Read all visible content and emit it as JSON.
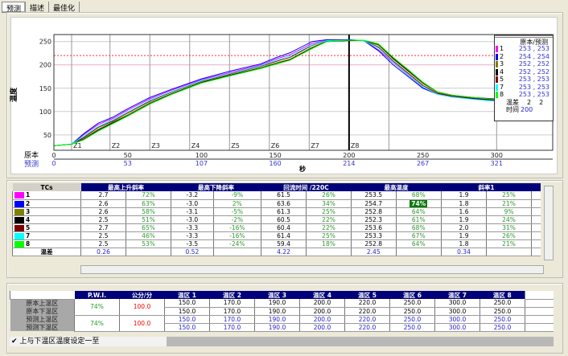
{
  "tabs": [
    {
      "label": "预测",
      "active": true
    },
    {
      "label": "描述"
    },
    {
      "label": "最佳化"
    }
  ],
  "chart_data": {
    "type": "line",
    "ylabel": "温度",
    "xlabel": "秒",
    "xlim": [
      0,
      338
    ],
    "ylim": [
      17,
      265
    ],
    "yticks": [
      50,
      100,
      150,
      200,
      250
    ],
    "xticks_original": {
      "label": "原本",
      "values": [
        0,
        50,
        100,
        150,
        200,
        250,
        300
      ]
    },
    "xticks_predicted": {
      "label": "预测",
      "values": [
        "0",
        "53",
        "107",
        "160",
        "214",
        "267",
        "321"
      ]
    },
    "reference_line": {
      "y": 220,
      "color": "#ff3030",
      "style": "dashed"
    },
    "cursor_x": 200,
    "zones": [
      {
        "label": "Z1",
        "x": 12
      },
      {
        "label": "Z2",
        "x": 38
      },
      {
        "label": "Z3",
        "x": 65
      },
      {
        "label": "Z4",
        "x": 92
      },
      {
        "label": "Z5",
        "x": 119
      },
      {
        "label": "Z6",
        "x": 146
      },
      {
        "label": "Z7",
        "x": 173
      },
      {
        "label": "Z8",
        "x": 200
      }
    ],
    "x": [
      0,
      12,
      20,
      30,
      40,
      50,
      65,
      80,
      100,
      120,
      140,
      150,
      160,
      175,
      185,
      200,
      210,
      220,
      230,
      240,
      250,
      260,
      270,
      285,
      300,
      320,
      335
    ],
    "series": [
      {
        "name": "1",
        "color": "#ff00ff",
        "values": [
          27,
          30,
          50,
          72,
          85,
          103,
          127,
          146,
          168,
          184,
          200,
          212,
          222,
          246,
          253,
          253,
          252,
          232,
          205,
          178,
          152,
          138,
          132,
          127,
          124,
          121,
          119
        ]
      },
      {
        "name": "2",
        "color": "#0000ff",
        "values": [
          27,
          30,
          52,
          75,
          88,
          106,
          130,
          148,
          170,
          187,
          202,
          215,
          226,
          250,
          254,
          254,
          252,
          230,
          200,
          175,
          150,
          137,
          131,
          127,
          124,
          121,
          119
        ]
      },
      {
        "name": "3",
        "color": "#808000",
        "values": [
          27,
          30,
          42,
          62,
          78,
          93,
          119,
          139,
          163,
          179,
          194,
          204,
          212,
          238,
          251,
          252,
          252,
          242,
          212,
          186,
          160,
          141,
          134,
          129,
          126,
          123,
          121
        ]
      },
      {
        "name": "4",
        "color": "#000000",
        "values": [
          27,
          30,
          40,
          60,
          76,
          91,
          117,
          138,
          162,
          178,
          193,
          202,
          211,
          236,
          250,
          252,
          252,
          244,
          214,
          188,
          162,
          142,
          135,
          130,
          127,
          124,
          122
        ]
      },
      {
        "name": "5",
        "color": "#800000",
        "values": [
          27,
          30,
          44,
          66,
          80,
          97,
          122,
          142,
          165,
          181,
          197,
          207,
          216,
          242,
          252,
          253,
          252,
          238,
          208,
          182,
          156,
          139,
          133,
          128,
          125,
          122,
          120
        ]
      },
      {
        "name": "7",
        "color": "#00ffff",
        "values": [
          27,
          30,
          47,
          68,
          82,
          99,
          124,
          143,
          166,
          182,
          198,
          209,
          219,
          243,
          252,
          253,
          252,
          236,
          206,
          179,
          153,
          137,
          131,
          126,
          122,
          119,
          117
        ]
      },
      {
        "name": "8",
        "color": "#00ff00",
        "values": [
          27,
          30,
          39,
          58,
          74,
          90,
          116,
          137,
          161,
          177,
          192,
          201,
          210,
          235,
          250,
          253,
          253,
          245,
          216,
          190,
          163,
          142,
          135,
          130,
          126,
          123,
          121
        ]
      }
    ]
  },
  "legend": {
    "header": "原本/预测",
    "rows": [
      {
        "tc": "1",
        "color": "#ff00ff",
        "value": "253 , 253"
      },
      {
        "tc": "2",
        "color": "#0000ff",
        "value": "254 , 254"
      },
      {
        "tc": "3",
        "color": "#808000",
        "value": "252 , 252"
      },
      {
        "tc": "4",
        "color": "#000000",
        "value": "252 , 252"
      },
      {
        "tc": "5",
        "color": "#800000",
        "value": "253 , 253"
      },
      {
        "tc": "7",
        "color": "#00ffff",
        "value": "253 , 253"
      },
      {
        "tc": "8",
        "color": "#00ff00",
        "value": "253 , 253"
      }
    ],
    "delta_label": "温差",
    "delta_a": "2",
    "delta_b": "2",
    "time_label": "时间",
    "time_value": "200"
  },
  "stats_table": {
    "headers": [
      "TCs",
      "最高上升斜率",
      "最高下降斜率",
      "回流时间 /220C",
      "最高温度",
      "斜率1"
    ],
    "rows": [
      {
        "tc": "1",
        "color": "#ff00ff",
        "cells": [
          "2.7",
          "72%",
          "-3.2",
          "-9%",
          "61.5",
          "26%",
          "253.5",
          "68%",
          "1.9",
          "25%"
        ]
      },
      {
        "tc": "2",
        "color": "#0000ff",
        "cells": [
          "2.6",
          "63%",
          "-3.0",
          "2%",
          "63.6",
          "34%",
          "254.7",
          "74%",
          "1.8",
          "21%"
        ],
        "highlight": 7
      },
      {
        "tc": "3",
        "color": "#808000",
        "cells": [
          "2.6",
          "58%",
          "-3.1",
          "-5%",
          "61.3",
          "25%",
          "252.8",
          "64%",
          "1.6",
          "9%"
        ]
      },
      {
        "tc": "4",
        "color": "#000000",
        "cells": [
          "2.5",
          "51%",
          "-3.0",
          "-2%",
          "60.5",
          "22%",
          "252.3",
          "61%",
          "1.9",
          "24%"
        ]
      },
      {
        "tc": "5",
        "color": "#800000",
        "cells": [
          "2.7",
          "65%",
          "-3.3",
          "-16%",
          "60.4",
          "22%",
          "253.6",
          "68%",
          "2.0",
          "31%"
        ]
      },
      {
        "tc": "7",
        "color": "#00ffff",
        "cells": [
          "2.5",
          "46%",
          "-3.3",
          "-16%",
          "61.4",
          "25%",
          "253.3",
          "67%",
          "1.9",
          "26%"
        ]
      },
      {
        "tc": "8",
        "color": "#00ff00",
        "cells": [
          "2.5",
          "53%",
          "-3.5",
          "-24%",
          "59.4",
          "18%",
          "252.8",
          "64%",
          "1.8",
          "21%"
        ]
      }
    ],
    "delta_row": {
      "label": "温差",
      "cells": [
        "0.26",
        "",
        "0.52",
        "",
        "4.22",
        "",
        "2.45",
        "",
        "0.34",
        ""
      ]
    }
  },
  "zone_table": {
    "headers": [
      "",
      "P.W.I.",
      "公分/分",
      "温区 1",
      "温区 2",
      "温区 3",
      "温区 4",
      "温区 5",
      "温区 6",
      "温区 7",
      "温区 8"
    ],
    "rows": [
      {
        "label": "原本上温区",
        "pwi": "74%",
        "speed": "100.0",
        "zones": [
          "150.0",
          "170.0",
          "190.0",
          "200.0",
          "220.0",
          "250.0",
          "300.0",
          "250.0"
        ]
      },
      {
        "label": "原本下温区",
        "zones": [
          "150.0",
          "170.0",
          "190.0",
          "200.0",
          "220.0",
          "250.0",
          "300.0",
          "250.0"
        ]
      },
      {
        "label": "预测上温区",
        "pwi": "74%",
        "speed": "100.0",
        "zones": [
          "150.0",
          "170.0",
          "190.0",
          "200.0",
          "220.0",
          "250.0",
          "300.0",
          "250.0"
        ]
      },
      {
        "label": "预测下温区",
        "zones": [
          "150.0",
          "170.0",
          "190.0",
          "200.0",
          "220.0",
          "250.0",
          "300.0",
          "250.0"
        ]
      }
    ]
  },
  "checkbox": {
    "label": "上与下温区温度设定一至",
    "checked": true
  }
}
